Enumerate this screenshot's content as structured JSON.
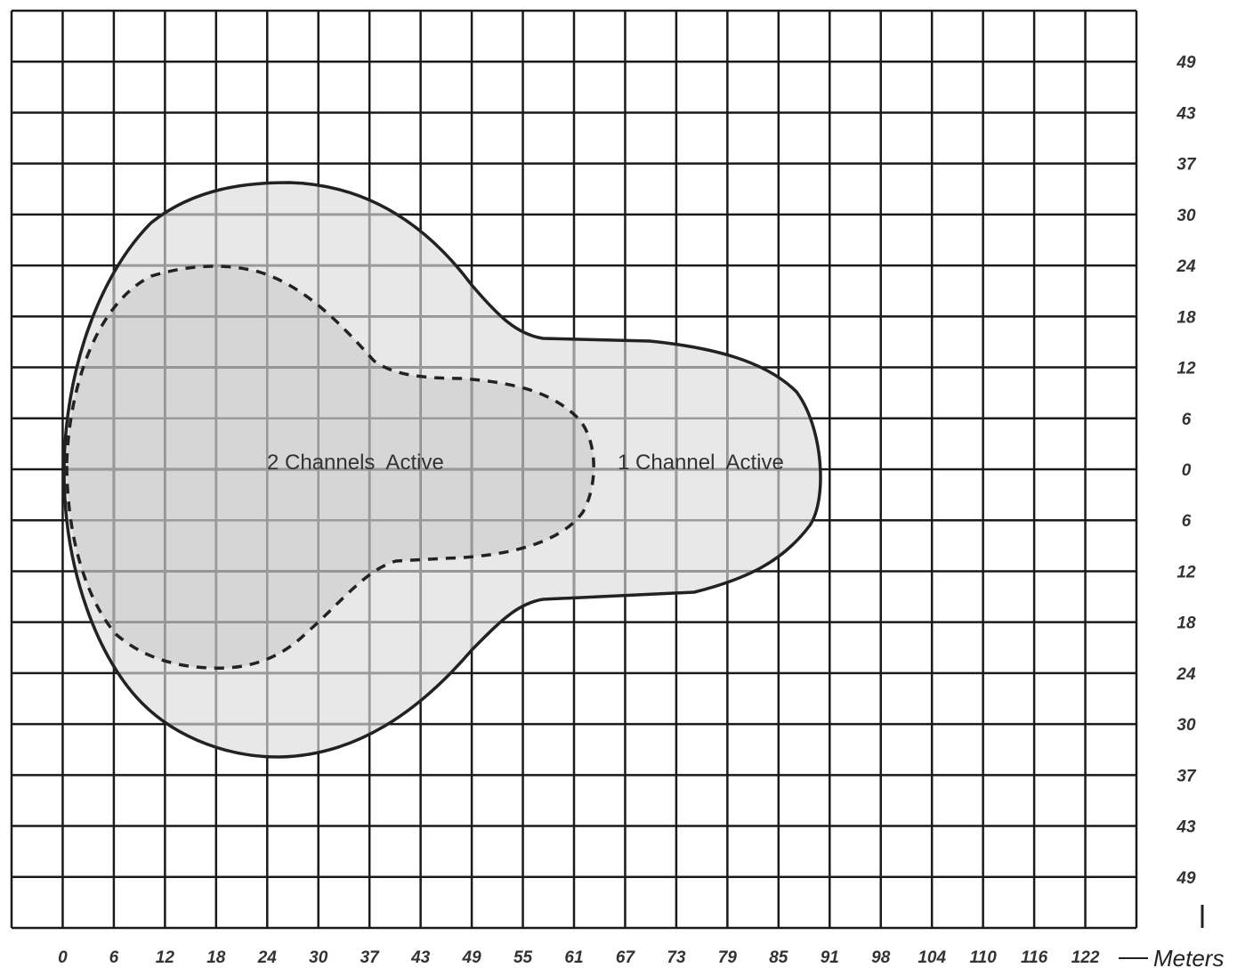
{
  "regions": {
    "two_channels_label": "2 Channels  Active",
    "one_channel_label": "1 Channel  Active"
  },
  "x_axis": {
    "ticks": [
      "0",
      "6",
      "12",
      "18",
      "24",
      "30",
      "37",
      "43",
      "49",
      "55",
      "61",
      "67",
      "73",
      "79",
      "85",
      "91",
      "98",
      "104",
      "110",
      "116",
      "122"
    ],
    "unit": "Meters"
  },
  "y_axis": {
    "ticks": [
      "49",
      "43",
      "37",
      "30",
      "24",
      "18",
      "12",
      "6",
      "0",
      "6",
      "12",
      "18",
      "24",
      "30",
      "37",
      "43",
      "49"
    ]
  },
  "colors": {
    "outer_fill": "#e8e8e8",
    "inner_fill": "#d6d6d6",
    "grid_line": "#1a1a1a",
    "grid_line_inside": "#9a9a9a",
    "outline": "#222222"
  }
}
